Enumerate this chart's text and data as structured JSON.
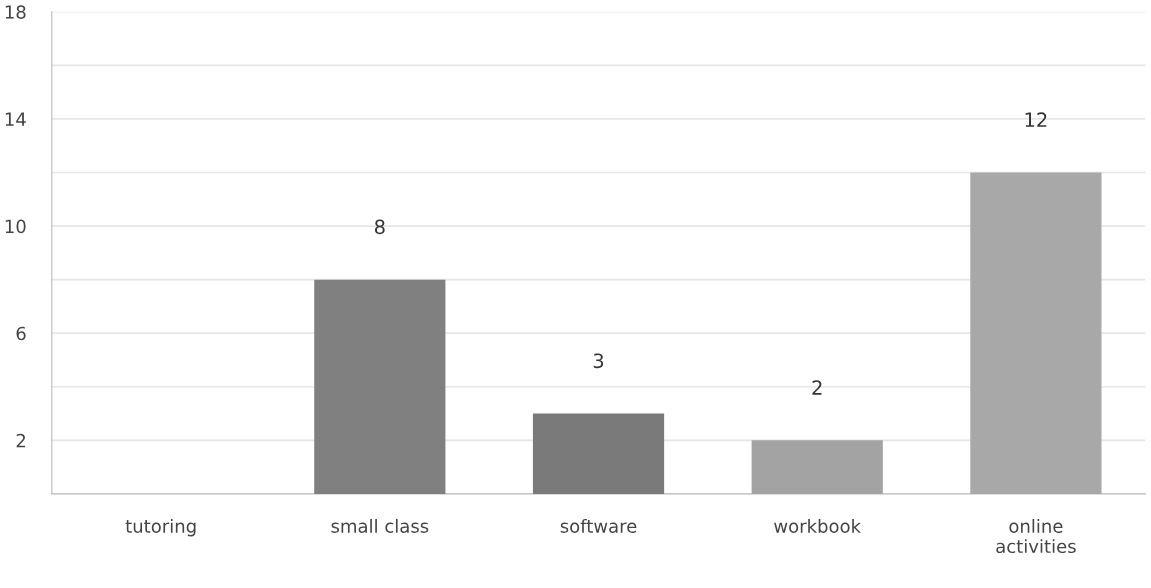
{
  "chart_data": {
    "type": "bar",
    "categories": [
      "tutoring",
      "small class",
      "software",
      "workbook",
      "online\nactivities"
    ],
    "values": [
      0,
      8,
      3,
      2,
      12
    ],
    "colors": [
      null,
      "#808080",
      "#7a7a7a",
      "#a3a3a3",
      "#a8a8a8"
    ],
    "value_labels": [
      null,
      "8",
      "3",
      "2",
      "12"
    ],
    "ylim": [
      0,
      18
    ],
    "yticks": [
      {
        "value": 0,
        "label": null
      },
      2,
      {
        "value": 4,
        "label": null
      },
      6,
      {
        "value": 8,
        "label": null
      },
      10,
      {
        "value": 12,
        "label": null
      },
      14,
      {
        "value": 16,
        "label": null
      },
      18
    ],
    "grid": "y"
  }
}
